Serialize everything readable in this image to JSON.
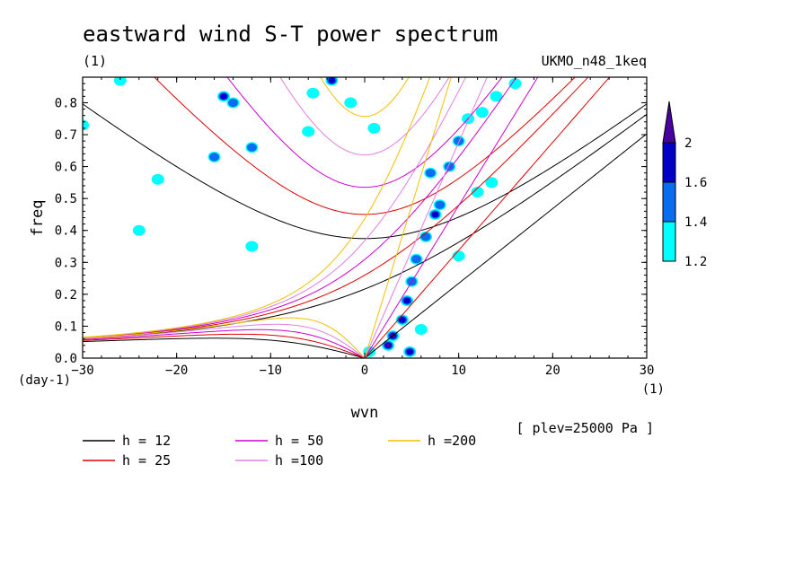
{
  "chart_data": {
    "type": "heatmap",
    "title": "eastward wind S-T power spectrum",
    "subtitle_left": "(1)",
    "subtitle_right": "UKMO_n48_1keq",
    "xlabel": "wvn",
    "xunit": "(1)",
    "ylabel": "freq",
    "yunit": "(day-1)",
    "annotation": "[ plev=25000 Pa ]",
    "xlim": [
      -30,
      30
    ],
    "ylim": [
      0,
      0.88
    ],
    "xticks": [
      "−30",
      "−20",
      "−10",
      "0",
      "10",
      "20",
      "30"
    ],
    "xtick_values": [
      -30,
      -20,
      -10,
      0,
      10,
      20,
      30
    ],
    "yticks": [
      "0.0",
      "0.1",
      "0.2",
      "0.3",
      "0.4",
      "0.5",
      "0.6",
      "0.7",
      "0.8"
    ],
    "ytick_values": [
      0,
      0.1,
      0.2,
      0.3,
      0.4,
      0.5,
      0.6,
      0.7,
      0.8
    ],
    "colorbar": {
      "levels": [
        "1.2",
        "1.4",
        "1.6",
        "2"
      ],
      "colors": [
        "#00ffff",
        "#0a6cf0",
        "#0000c8",
        "#4a00a0"
      ],
      "extend": "max"
    },
    "contour_patches": [
      {
        "x": 3.0,
        "y": 0.07,
        "level": 3
      },
      {
        "x": 2.5,
        "y": 0.04,
        "level": 3
      },
      {
        "x": 4.0,
        "y": 0.12,
        "level": 2
      },
      {
        "x": 4.5,
        "y": 0.18,
        "level": 2
      },
      {
        "x": 5.0,
        "y": 0.24,
        "level": 1
      },
      {
        "x": 5.5,
        "y": 0.31,
        "level": 1
      },
      {
        "x": 6.5,
        "y": 0.38,
        "level": 1
      },
      {
        "x": 7.5,
        "y": 0.45,
        "level": 2
      },
      {
        "x": 7.0,
        "y": 0.58,
        "level": 1
      },
      {
        "x": 8.0,
        "y": 0.48,
        "level": 1
      },
      {
        "x": 9.0,
        "y": 0.6,
        "level": 1
      },
      {
        "x": 10.0,
        "y": 0.68,
        "level": 1
      },
      {
        "x": 11.0,
        "y": 0.75,
        "level": 0
      },
      {
        "x": 12.5,
        "y": 0.77,
        "level": 0
      },
      {
        "x": 14.0,
        "y": 0.82,
        "level": 0
      },
      {
        "x": 16.0,
        "y": 0.86,
        "level": 0
      },
      {
        "x": 12.0,
        "y": 0.52,
        "level": 0
      },
      {
        "x": 13.5,
        "y": 0.55,
        "level": 0
      },
      {
        "x": 10.0,
        "y": 0.32,
        "level": 0
      },
      {
        "x": 6.0,
        "y": 0.09,
        "level": 0
      },
      {
        "x": 4.8,
        "y": 0.02,
        "level": 2
      },
      {
        "x": 0.5,
        "y": 0.02,
        "level": 0
      },
      {
        "x": -15.0,
        "y": 0.82,
        "level": 2
      },
      {
        "x": -14.0,
        "y": 0.8,
        "level": 1
      },
      {
        "x": -16.0,
        "y": 0.63,
        "level": 1
      },
      {
        "x": -12.0,
        "y": 0.66,
        "level": 1
      },
      {
        "x": -5.5,
        "y": 0.83,
        "level": 0
      },
      {
        "x": -3.5,
        "y": 0.87,
        "level": 2
      },
      {
        "x": -26.0,
        "y": 0.87,
        "level": 0
      },
      {
        "x": -30.0,
        "y": 0.73,
        "level": 0
      },
      {
        "x": -22.0,
        "y": 0.56,
        "level": 0
      },
      {
        "x": -12.0,
        "y": 0.35,
        "level": 0
      },
      {
        "x": -24.0,
        "y": 0.4,
        "level": 0
      },
      {
        "x": -6.0,
        "y": 0.71,
        "level": 0
      },
      {
        "x": 1.0,
        "y": 0.72,
        "level": 0
      },
      {
        "x": -1.5,
        "y": 0.8,
        "level": 0
      }
    ],
    "series": [
      {
        "name": "h = 12",
        "color": "#000000",
        "h": 12,
        "label": "h = 12"
      },
      {
        "name": "h = 25",
        "color": "#e00000",
        "h": 25,
        "label": "h = 25"
      },
      {
        "name": "h = 50",
        "color": "#cc00cc",
        "h": 50,
        "label": "h = 50"
      },
      {
        "name": "h =100",
        "color": "#e080e0",
        "h": 100,
        "label": "h =100"
      },
      {
        "name": "h =200",
        "color": "#f0c000",
        "h": 200,
        "label": "h =200"
      }
    ]
  }
}
